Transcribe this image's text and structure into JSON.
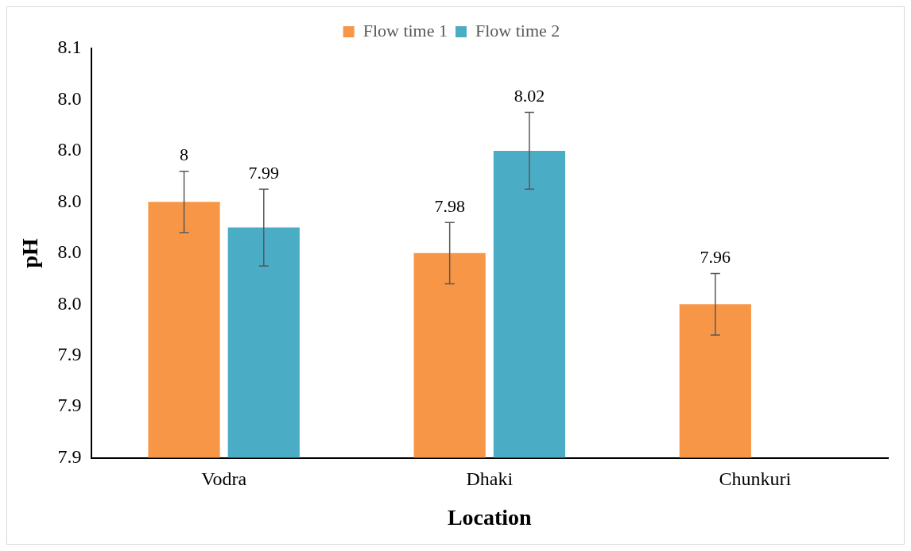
{
  "chart_data": {
    "type": "bar",
    "categories": [
      "Vodra",
      "Dhaki",
      "Chunkuri"
    ],
    "series": [
      {
        "name": "Flow time 1",
        "color": "#f79646",
        "values": [
          8,
          7.98,
          7.96
        ],
        "errors": [
          0.012,
          0.012,
          0.012
        ]
      },
      {
        "name": "Flow time 2",
        "color": "#4bacc6",
        "values": [
          7.99,
          8.02,
          null
        ],
        "errors": [
          0.015,
          0.015,
          null
        ]
      }
    ],
    "xlabel": "Location",
    "ylabel": "pH",
    "ylim": [
      7.9,
      8.06
    ],
    "yticks": [
      {
        "value": 7.9,
        "label": "7.9"
      },
      {
        "value": 7.92,
        "label": "7.9"
      },
      {
        "value": 7.94,
        "label": "7.9"
      },
      {
        "value": 7.96,
        "label": "8.0"
      },
      {
        "value": 7.98,
        "label": "8.0"
      },
      {
        "value": 8,
        "label": "8.0"
      },
      {
        "value": 8.02,
        "label": "8.0"
      },
      {
        "value": 8.04,
        "label": "8.0"
      },
      {
        "value": 8.06,
        "label": "8.1"
      }
    ],
    "grid": false,
    "legend": "top",
    "data_labels": true
  }
}
